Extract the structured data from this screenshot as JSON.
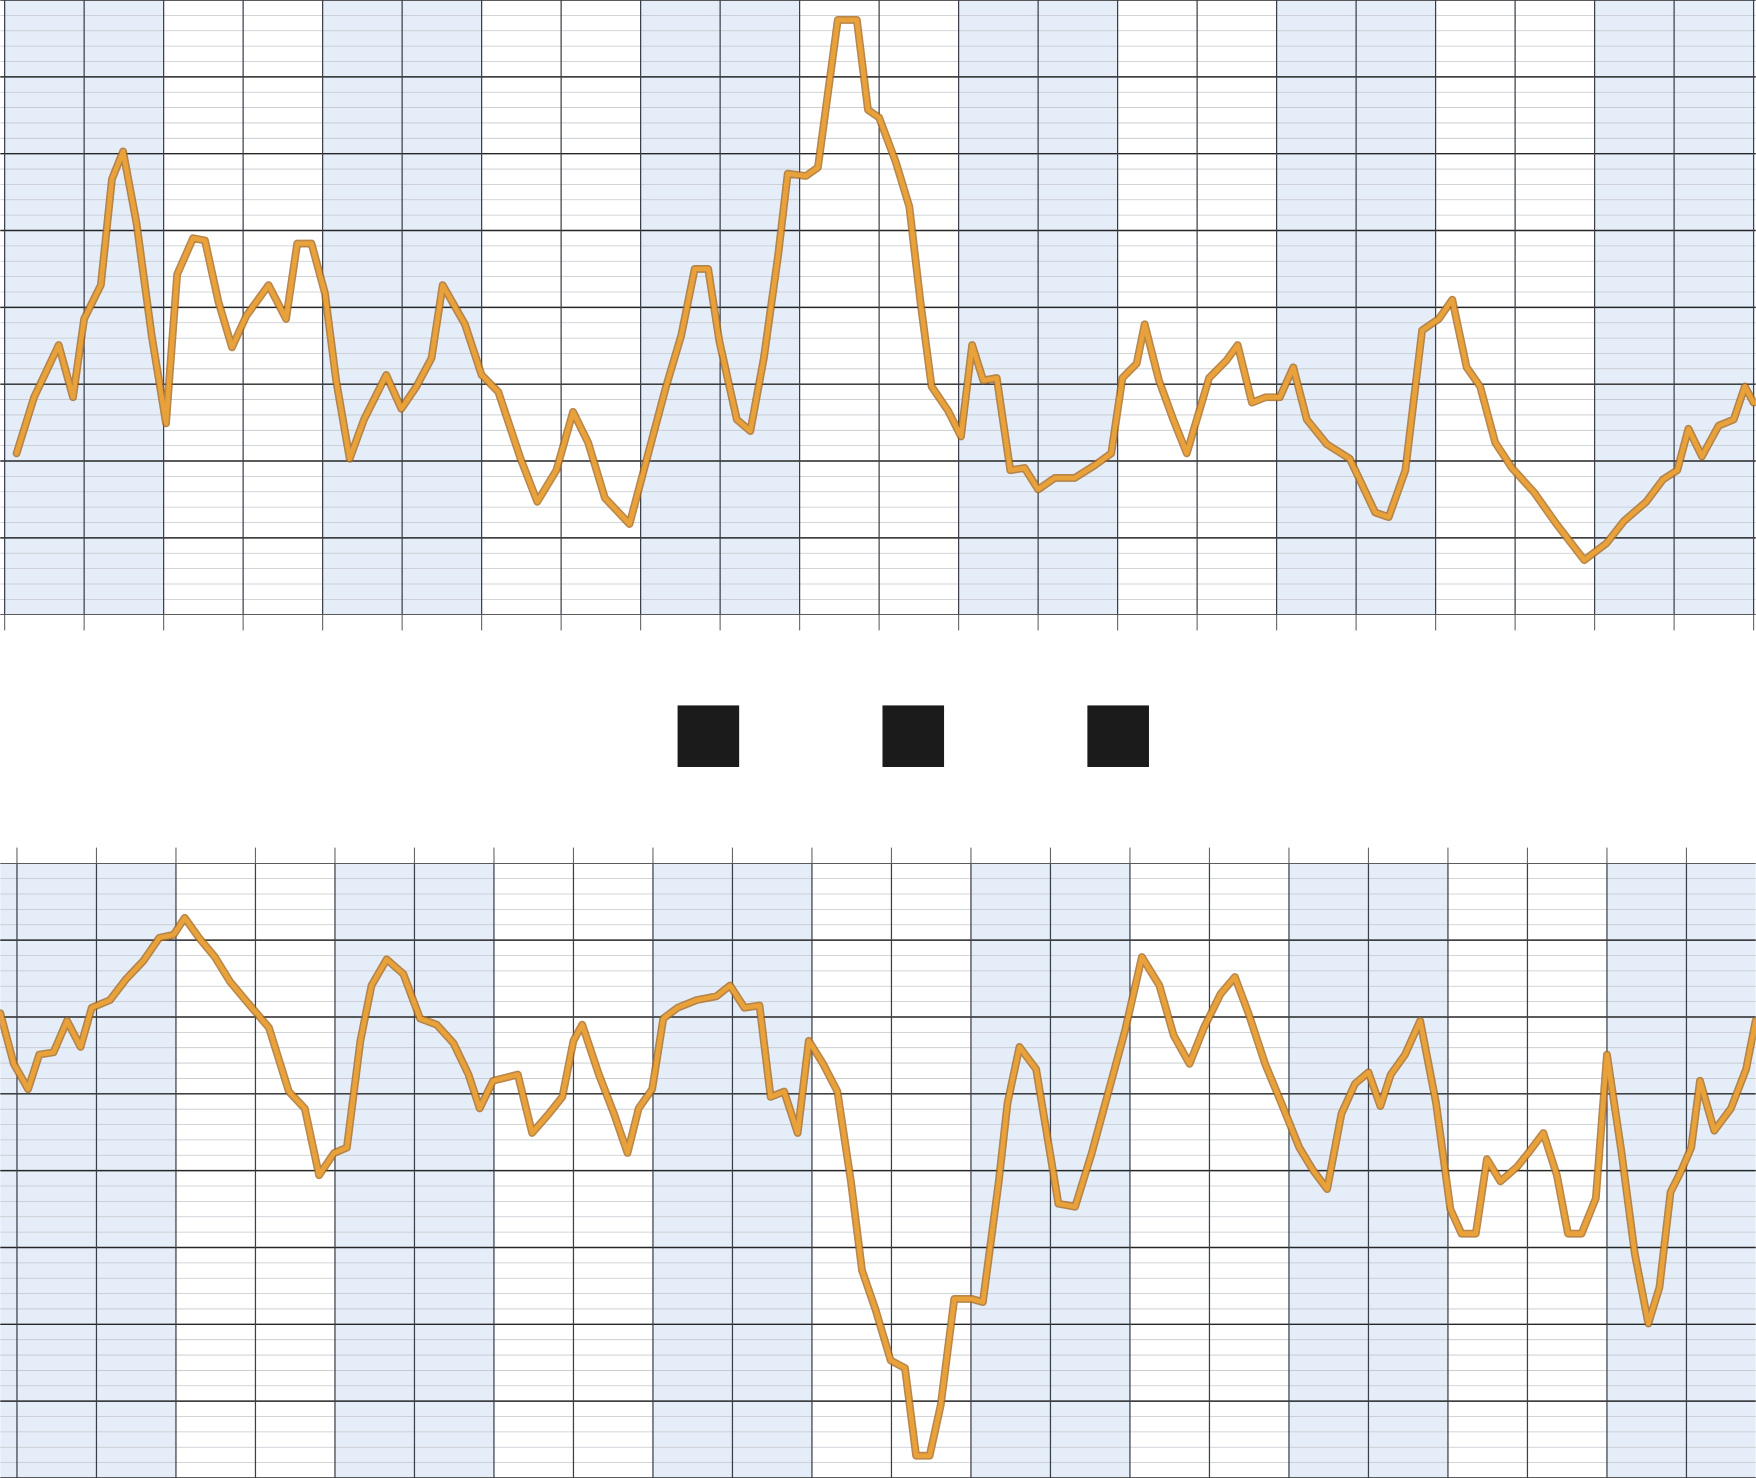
{
  "chart_data": [
    {
      "type": "line",
      "color": "#e9a13a",
      "grid": true,
      "xlim": [
        0,
        220
      ],
      "ylim": [
        0,
        80
      ],
      "xticks": [
        0,
        10,
        20,
        30,
        40,
        50,
        60,
        70,
        80,
        90,
        100,
        110,
        120,
        130,
        140,
        150,
        160,
        170,
        180,
        190,
        200,
        210,
        220
      ],
      "yticks": [
        0,
        10,
        20,
        30,
        40,
        50,
        60,
        70,
        80
      ],
      "x": [
        1.5,
        3.7,
        6.8,
        8.6,
        10,
        12.1,
        13.5,
        14.9,
        16.6,
        18.5,
        20.3,
        21.7,
        23.7,
        25.2,
        26.9,
        28.6,
        30.4,
        33.2,
        35.4,
        36.8,
        38.6,
        40.3,
        41.7,
        43.4,
        45.2,
        48,
        49.9,
        51.8,
        53.7,
        55.1,
        57.9,
        60,
        62.1,
        64.9,
        67,
        69.4,
        71.5,
        73.4,
        75.5,
        78.6,
        80.4,
        83.2,
        85.1,
        86.8,
        88.5,
        89.9,
        92.1,
        93.8,
        95.5,
        97.3,
        98.5,
        100.8,
        102.3,
        104.8,
        107.2,
        108.6,
        110,
        112.1,
        113.8,
        115.2,
        116.6,
        118.7,
        120.3,
        121.7,
        123.1,
        124.8,
        126.5,
        128.3,
        130,
        132.1,
        134.6,
        137.2,
        139.2,
        140.6,
        142.4,
        143.4,
        145.2,
        147,
        148.7,
        151.5,
        153.7,
        155.1,
        156.9,
        158.6,
        160.4,
        162.1,
        163.8,
        166.3,
        169.2,
        172.4,
        174.1,
        176.2,
        178.3,
        180.4,
        182.1,
        183.9,
        185.6,
        187.5,
        189.6,
        192.4,
        195.2,
        198.7,
        201.5,
        203.7,
        206.5,
        208.6,
        210.4,
        211.8,
        213.5,
        215.6,
        217.5,
        218.9,
        220
      ],
      "values": [
        21,
        28.3,
        35.1,
        28.3,
        38.5,
        42.9,
        56.7,
        60.3,
        50.9,
        36.3,
        24.9,
        44.3,
        49,
        48.7,
        40.7,
        34.8,
        38.9,
        42.9,
        38.5,
        48.3,
        48.3,
        41.8,
        30.5,
        20.3,
        25.4,
        31.2,
        26.8,
        29.7,
        33.4,
        42.9,
        37.8,
        31.2,
        29,
        20.3,
        14.7,
        18.8,
        26.4,
        22.4,
        15.2,
        11.8,
        18.8,
        29.7,
        36.3,
        45,
        45,
        35.6,
        25.4,
        23.9,
        33.4,
        46.8,
        57.4,
        57.1,
        58.2,
        77.4,
        77.4,
        65.7,
        64.7,
        58.9,
        53.1,
        40.7,
        29.7,
        26.5,
        23.2,
        35.1,
        30.5,
        30.8,
        18.8,
        19.1,
        16.3,
        17.8,
        17.8,
        19.5,
        21,
        30.8,
        32.7,
        37.8,
        30.5,
        25.4,
        21,
        30.8,
        33.1,
        35.1,
        27.6,
        28.3,
        28.3,
        32.2,
        25.4,
        22.2,
        20.3,
        13.3,
        12.7,
        18.8,
        37,
        38.5,
        41,
        32.2,
        29.7,
        22.4,
        19.1,
        15.9,
        11.8,
        7.1,
        9.3,
        12.2,
        14.7,
        17.6,
        18.8,
        24.2,
        20.6,
        24.6,
        25.4,
        29.7,
        27.6
      ]
    },
    {
      "type": "line",
      "color": "#e9a13a",
      "grid": true,
      "xlim": [
        -2.1,
        218.7
      ],
      "ylim": [
        0,
        80
      ],
      "xticks": [
        0,
        10,
        20,
        30,
        40,
        50,
        60,
        70,
        80,
        90,
        100,
        110,
        120,
        130,
        140,
        150,
        160,
        170,
        180,
        190,
        200,
        210
      ],
      "yticks": [
        0,
        10,
        20,
        30,
        40,
        50,
        60,
        70,
        80
      ],
      "x": [
        -2.1,
        -0.4,
        1.4,
        2.8,
        4.6,
        6.3,
        8,
        9.4,
        11.7,
        13.7,
        15.9,
        17.9,
        19.7,
        21.1,
        22.9,
        24.9,
        26.8,
        28.9,
        31.7,
        34.2,
        36.2,
        38,
        39.9,
        41.5,
        43.2,
        44.6,
        46.5,
        48.6,
        50.7,
        52.8,
        54.9,
        56.8,
        58.2,
        59.9,
        63,
        64.8,
        66.9,
        68.6,
        70,
        71.1,
        73.2,
        75.1,
        76.8,
        78.2,
        79.9,
        81.3,
        83.1,
        85.5,
        88,
        89.7,
        91.5,
        93.4,
        94.8,
        96.5,
        98.2,
        99.6,
        101.4,
        103.2,
        104.9,
        106.3,
        108,
        109.9,
        111.7,
        113.1,
        114.8,
        116.2,
        117.9,
        120.1,
        121.5,
        123.5,
        124.6,
        126.1,
        128.2,
        131,
        133.1,
        135.2,
        137.3,
        139.4,
        141.5,
        143.7,
        145.5,
        147.5,
        149.3,
        151.4,
        153.2,
        154.9,
        157,
        159.2,
        161.3,
        163,
        164.8,
        166.6,
        168.3,
        170,
        171.5,
        172.8,
        174.6,
        176.5,
        178.5,
        180.3,
        181.7,
        183.5,
        184.9,
        186.6,
        188.7,
        190.1,
        192,
        193.7,
        195.1,
        196.8,
        198.6,
        200,
        201.8,
        203.5,
        205.2,
        206.6,
        208,
        209.4,
        210.6,
        211.7,
        213.5,
        215.6,
        217.5,
        218.7
      ],
      "values": [
        60.5,
        53.9,
        50.6,
        55.1,
        55.4,
        59.5,
        56.1,
        61.2,
        62.2,
        64.9,
        67.3,
        70.3,
        70.7,
        72.9,
        70.3,
        67.8,
        64.6,
        62,
        58.6,
        50.3,
        48.1,
        39.4,
        42.3,
        43,
        56.9,
        64.1,
        67.5,
        65.6,
        59.8,
        59,
        56.6,
        52.5,
        48.1,
        51.7,
        52.5,
        44.9,
        47.4,
        49.6,
        56.9,
        59,
        52.5,
        47.4,
        42.3,
        48.1,
        50.6,
        59.8,
        61.2,
        62.2,
        62.7,
        64.1,
        61.2,
        61.5,
        49.6,
        50.3,
        44.9,
        56.9,
        53.9,
        50.3,
        38.6,
        27,
        21.9,
        15.3,
        14.3,
        2.9,
        2.9,
        9.5,
        23.3,
        23.3,
        22.9,
        38.6,
        48.8,
        56.1,
        53.2,
        35.7,
        35.3,
        42.3,
        50.3,
        58.3,
        67.8,
        64.1,
        57.6,
        53.9,
        58.6,
        63,
        65.2,
        60.5,
        53.9,
        48.4,
        43,
        40.1,
        37.6,
        47.4,
        51.3,
        52.8,
        48.4,
        52.5,
        55.1,
        59.5,
        48.8,
        35,
        31.8,
        31.8,
        41.5,
        38.6,
        40.5,
        42.3,
        44.9,
        39.4,
        31.8,
        31.8,
        36.4,
        55.1,
        42.6,
        29.2,
        20.1,
        24.8,
        37.2,
        40.1,
        43,
        51.7,
        45.2,
        48.1,
        53.2,
        59.5
      ]
    }
  ]
}
